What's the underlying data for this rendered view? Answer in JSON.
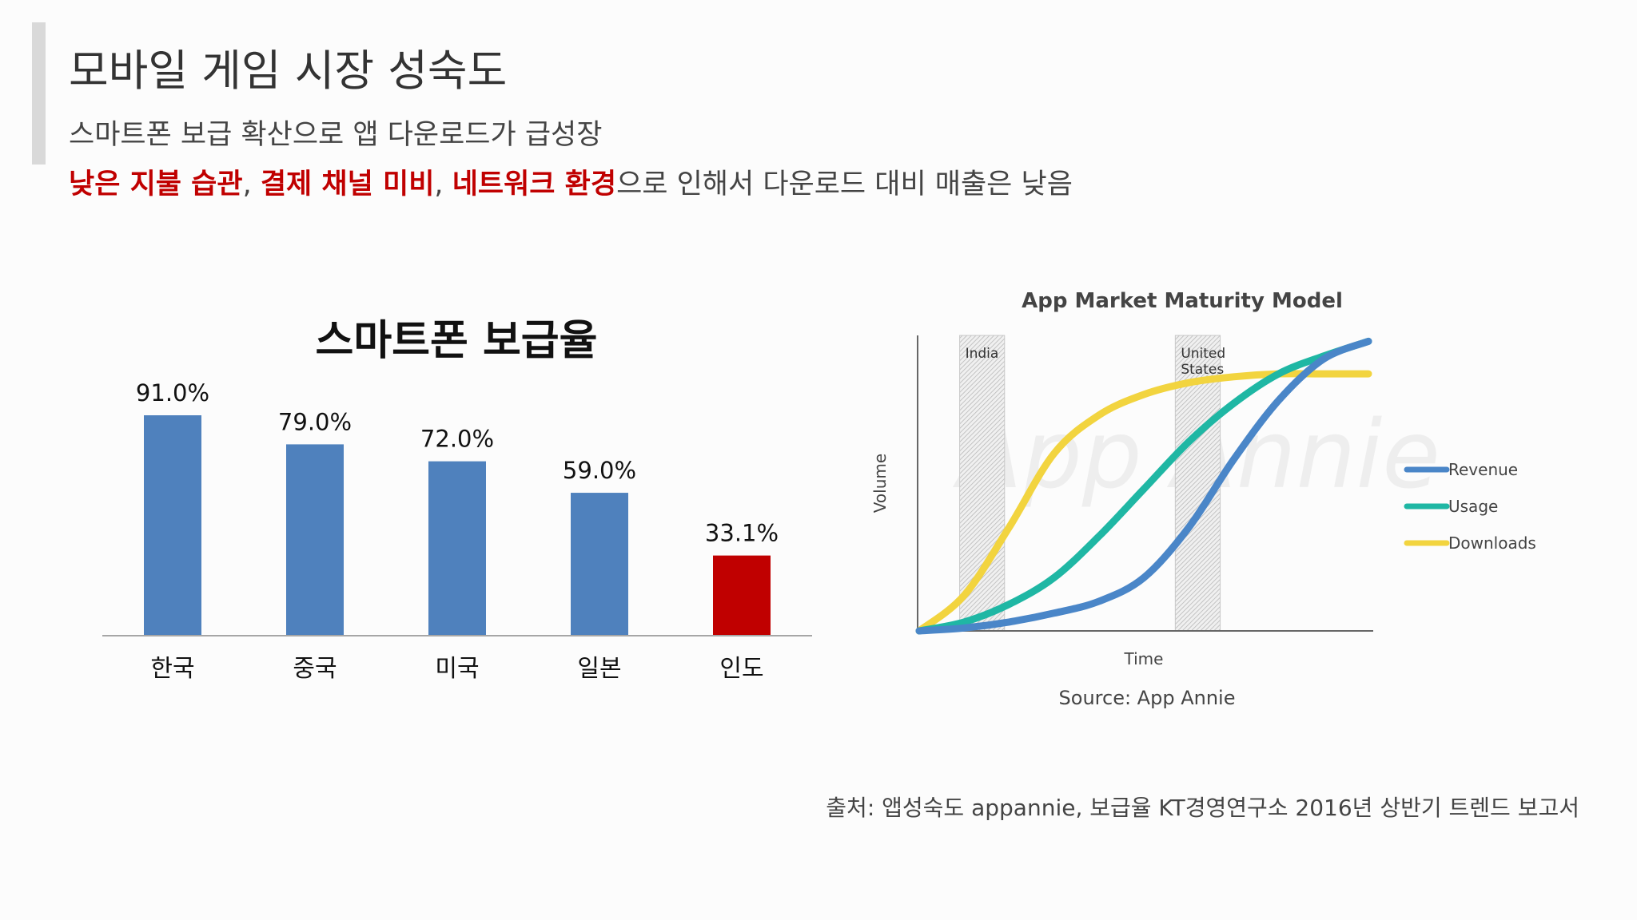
{
  "slide": {
    "title": "모바일 게임 시장 성숙도",
    "subtitle1": "스마트폰 보급 확산으로 앱 다운로드가 급성장",
    "subtitle2": {
      "red1": "낮은 지불 습관",
      "sep1": ", ",
      "red2": "결제 채널 미비",
      "sep2": ", ",
      "red3": "네트워크 환경",
      "rest": "으로 인해서 다운로드 대비 매출은 낮음"
    },
    "source": "출처: 앱성숙도 appannie, 보급율 KT경영연구소 2016년 상반기 트렌드 보고서"
  },
  "colors": {
    "bar": "#4f81bd",
    "highlight": "#c00000",
    "revenue": "#4a86c8",
    "usage": "#1fb7a4",
    "downloads": "#f2d43f"
  },
  "chart_data": [
    {
      "type": "bar",
      "title": "스마트폰 보급율",
      "categories": [
        "한국",
        "중국",
        "미국",
        "일본",
        "인도"
      ],
      "values": [
        91.0,
        79.0,
        72.0,
        59.0,
        33.1
      ],
      "data_labels": [
        "91.0%",
        "79.0%",
        "72.0%",
        "59.0%",
        "33.1%"
      ],
      "highlight_index": 4,
      "ylim": [
        0,
        100
      ],
      "grid": false
    },
    {
      "type": "line",
      "title": "App Market Maturity Model",
      "xlabel": "Time",
      "ylabel": "Volume",
      "source_note": "Source: App Annie",
      "watermark": "App Annie",
      "x": [
        0,
        10,
        20,
        30,
        40,
        50,
        60,
        70,
        80,
        90,
        100
      ],
      "series": [
        {
          "name": "Revenue",
          "values": [
            0,
            1,
            3,
            6,
            10,
            18,
            35,
            58,
            78,
            92,
            98
          ]
        },
        {
          "name": "Usage",
          "values": [
            0,
            3,
            9,
            18,
            32,
            48,
            64,
            77,
            87,
            93,
            98
          ]
        },
        {
          "name": "Downloads",
          "values": [
            0,
            12,
            35,
            60,
            73,
            80,
            84,
            86,
            87,
            87,
            87
          ]
        }
      ],
      "phase_markers": [
        {
          "label": "India",
          "x_range": [
            9,
            19
          ]
        },
        {
          "label": "United States",
          "x_range": [
            57,
            67
          ]
        }
      ],
      "legend": "right",
      "grid": false
    }
  ]
}
